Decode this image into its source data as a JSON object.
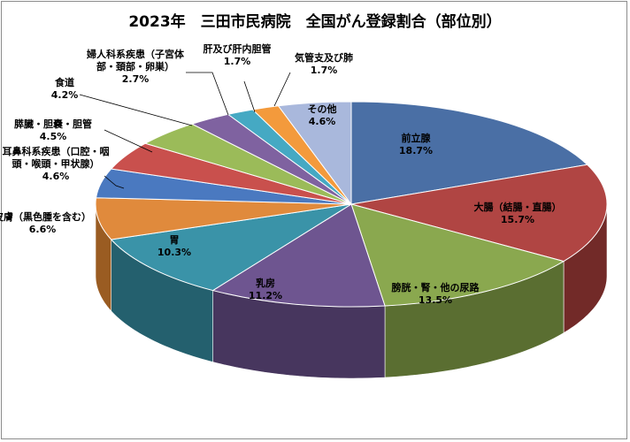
{
  "chart_data": {
    "type": "pie",
    "title": "2023年　三田市民病院　全国がん登録割合（部位別）",
    "slices": [
      {
        "label": [
          "前立腺"
        ],
        "value_label": "18.7%",
        "value": 18.7,
        "color": "#4a6fa5",
        "side": "#2e4a73"
      },
      {
        "label": [
          "大腸（結腸・直腸）"
        ],
        "value_label": "15.7%",
        "value": 15.7,
        "color": "#b04543",
        "side": "#722a28"
      },
      {
        "label": [
          "膀胱・腎・他の尿路"
        ],
        "value_label": "13.5%",
        "value": 13.5,
        "color": "#8aa84f",
        "side": "#5a6e31"
      },
      {
        "label": [
          "乳房"
        ],
        "value_label": "11.2%",
        "value": 11.2,
        "color": "#6e5590",
        "side": "#47365e"
      },
      {
        "label": [
          "胃"
        ],
        "value_label": "10.3%",
        "value": 10.3,
        "color": "#3a93a8",
        "side": "#24606e"
      },
      {
        "label": [
          "皮膚（黒色腫を含む）"
        ],
        "value_label": "6.6%",
        "value": 6.6,
        "color": "#e08a3c",
        "side": "#9a5c22"
      },
      {
        "label": [
          "耳鼻科系疾患（口腔・咽",
          "頭・喉頭・甲状腺）"
        ],
        "value_label": "4.6%",
        "value": 4.6,
        "color": "#4a79c0",
        "side": "#2f4f80"
      },
      {
        "label": [
          "膵臓・胆嚢・胆管"
        ],
        "value_label": "4.5%",
        "value": 4.5,
        "color": "#c9504d",
        "side": "#853330"
      },
      {
        "label": [
          "食道"
        ],
        "value_label": "4.2%",
        "value": 4.2,
        "color": "#9bbb59",
        "side": "#667c3a"
      },
      {
        "label": [
          "婦人科系疾患（子宮体",
          "部・頚部・卵巣）"
        ],
        "value_label": "2.7%",
        "value": 2.7,
        "color": "#7f62a0",
        "side": "#54416a"
      },
      {
        "label": [
          "肝及び肝内胆管"
        ],
        "value_label": "1.7%",
        "value": 1.7,
        "color": "#45a9c3",
        "side": "#2d6f80"
      },
      {
        "label": [
          "気管支及び肺"
        ],
        "value_label": "1.7%",
        "value": 1.7,
        "color": "#f39a3c",
        "side": "#a0652a"
      },
      {
        "label": [
          "その他"
        ],
        "value_label": "4.6%",
        "value": 4.6,
        "color": "#a9b8dc",
        "side": "#707a92"
      }
    ],
    "start_angle": "12 o'clock",
    "direction": "clockwise",
    "legend": "none",
    "labels": "category and percentage"
  }
}
